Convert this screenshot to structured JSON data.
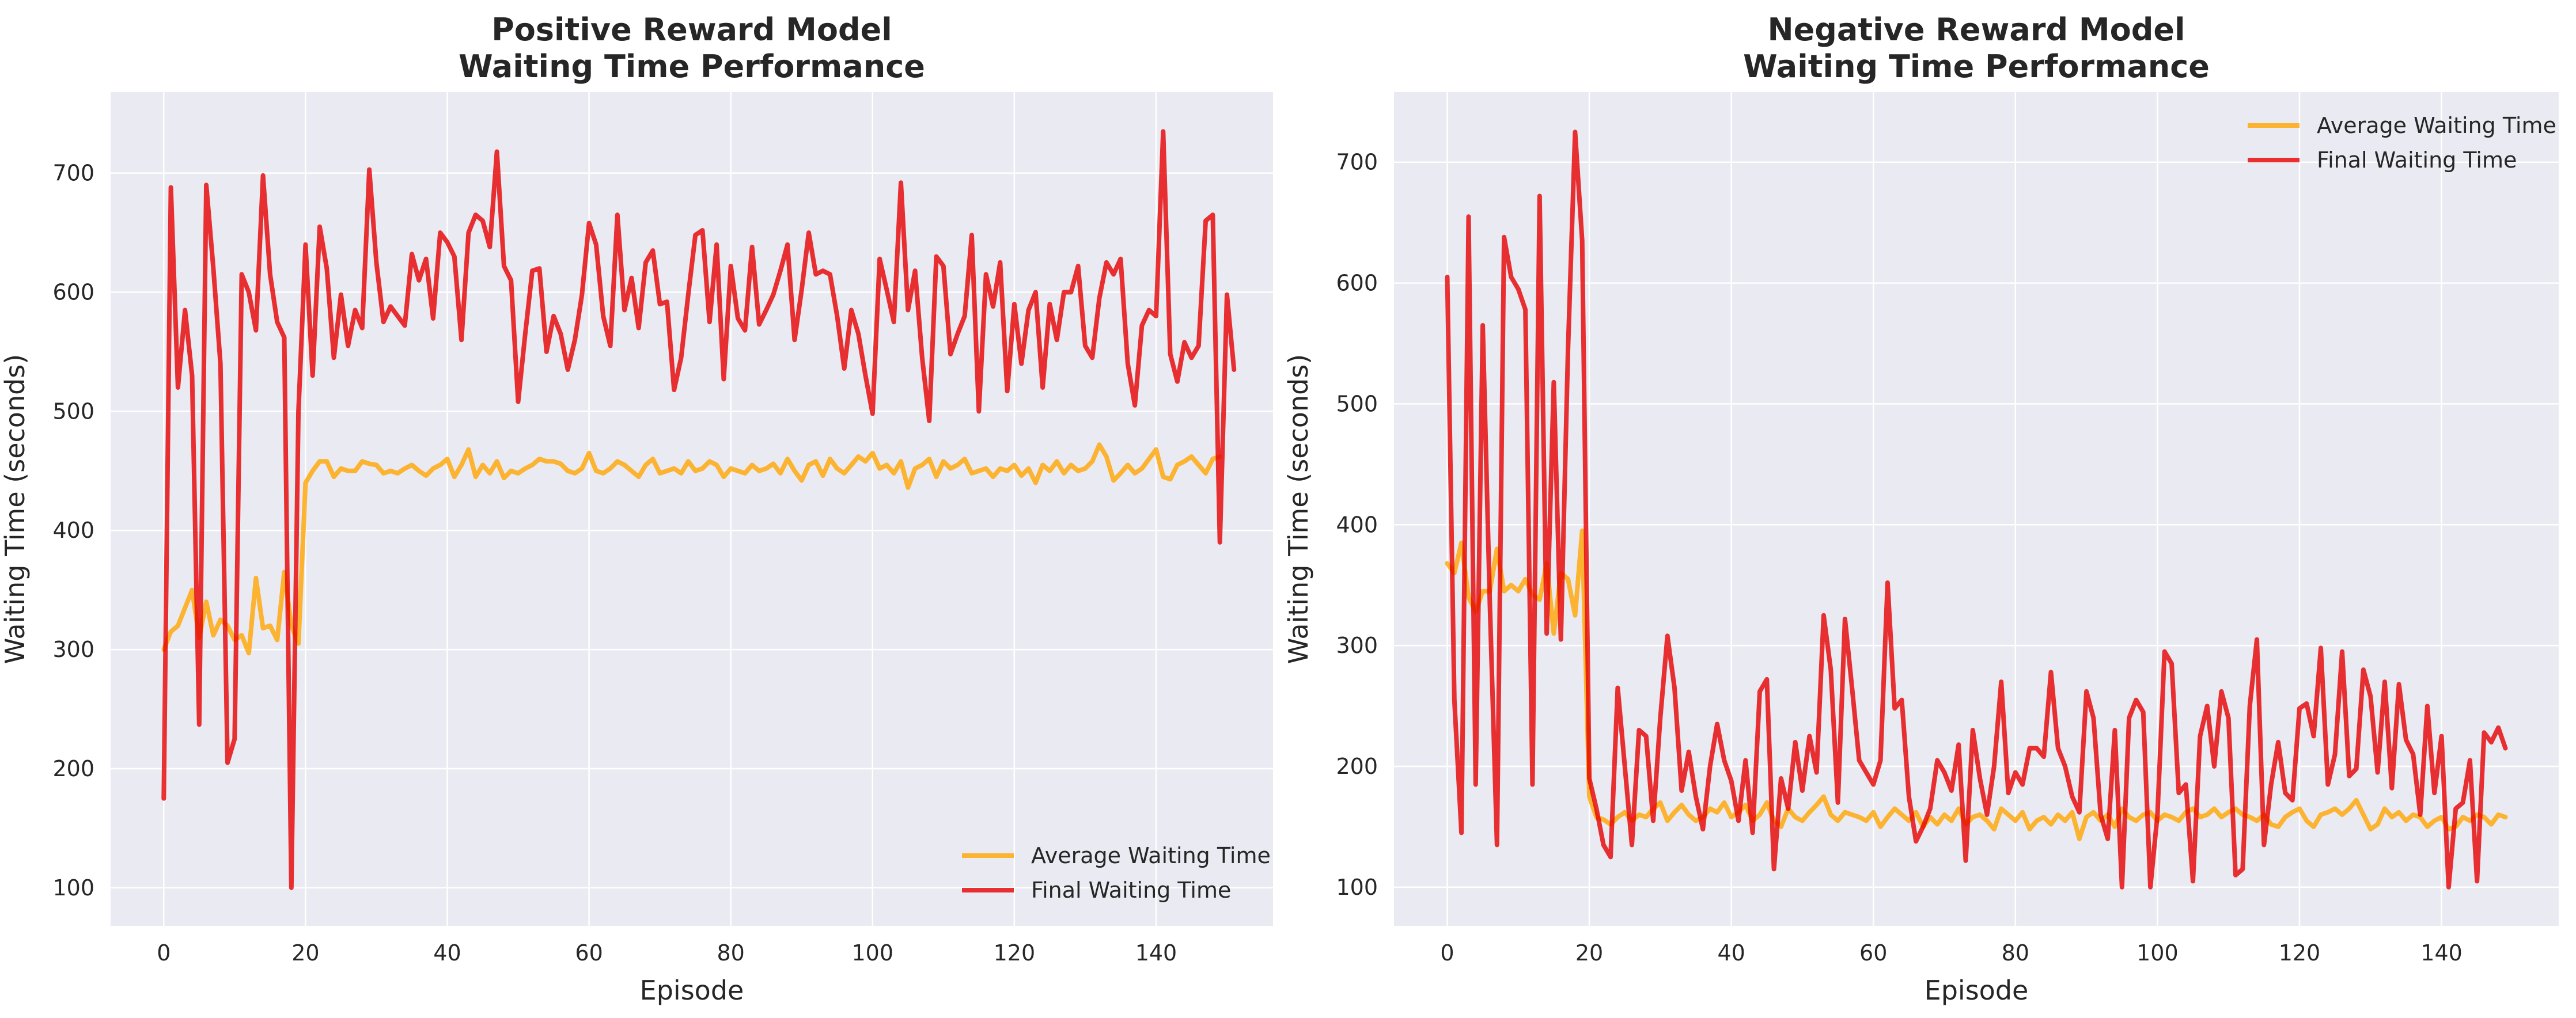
{
  "chart_data": [
    {
      "type": "line",
      "title": [
        "Positive Reward Model",
        "Waiting Time Performance"
      ],
      "xlabel": "Episode",
      "ylabel": "Waiting Time (seconds)",
      "xlim": [
        -7.5,
        156.5
      ],
      "ylim": [
        68,
        768
      ],
      "xticks": [
        0,
        20,
        40,
        60,
        80,
        100,
        120,
        140
      ],
      "yticks": [
        100,
        200,
        300,
        400,
        500,
        600,
        700
      ],
      "grid": true,
      "legend_position": "lower-right",
      "series": [
        {
          "name": "Average Waiting Time",
          "color": "#ffa500",
          "values": [
            300,
            315,
            320,
            335,
            350,
            310,
            340,
            312,
            325,
            320,
            308,
            312,
            297,
            360,
            318,
            320,
            308,
            365,
            320,
            305,
            440,
            450,
            458,
            458,
            445,
            452,
            450,
            450,
            458,
            456,
            455,
            448,
            450,
            448,
            452,
            455,
            450,
            446,
            452,
            455,
            460,
            445,
            455,
            468,
            445,
            455,
            448,
            458,
            444,
            450,
            448,
            452,
            455,
            460,
            458,
            458,
            456,
            450,
            448,
            452,
            465,
            450,
            448,
            452,
            458,
            455,
            450,
            445,
            455,
            460,
            448,
            450,
            452,
            448,
            458,
            450,
            452,
            458,
            455,
            445,
            452,
            450,
            448,
            455,
            450,
            452,
            456,
            448,
            460,
            450,
            442,
            455,
            458,
            446,
            460,
            452,
            448,
            455,
            462,
            458,
            465,
            452,
            455,
            448,
            458,
            436,
            452,
            455,
            460,
            445,
            458,
            452,
            455,
            460,
            448,
            450,
            452,
            445,
            452,
            450,
            455,
            446,
            452,
            440,
            455,
            450,
            458,
            448,
            455,
            450,
            452,
            458,
            472,
            462,
            442,
            448,
            455,
            448,
            452,
            460,
            468,
            445,
            443,
            455,
            458,
            462,
            455,
            448,
            460,
            462
          ]
        },
        {
          "name": "Final Waiting Time",
          "color": "#e60000",
          "values": [
            175,
            688,
            520,
            585,
            530,
            237,
            690,
            620,
            540,
            205,
            225,
            615,
            600,
            568,
            698,
            615,
            575,
            562,
            100,
            500,
            640,
            530,
            655,
            620,
            545,
            598,
            555,
            585,
            570,
            703,
            625,
            575,
            588,
            580,
            572,
            632,
            610,
            628,
            578,
            650,
            642,
            630,
            560,
            650,
            665,
            660,
            638,
            718,
            622,
            610,
            508,
            565,
            618,
            620,
            550,
            580,
            565,
            535,
            560,
            598,
            658,
            640,
            580,
            555,
            665,
            585,
            612,
            570,
            625,
            635,
            590,
            592,
            518,
            545,
            598,
            648,
            652,
            575,
            640,
            527,
            622,
            578,
            568,
            638,
            573,
            585,
            598,
            618,
            640,
            560,
            602,
            650,
            615,
            618,
            615,
            580,
            536,
            585,
            565,
            530,
            498,
            628,
            602,
            575,
            692,
            585,
            618,
            545,
            492,
            630,
            622,
            548,
            565,
            580,
            648,
            500,
            615,
            588,
            625,
            517,
            590,
            540,
            585,
            600,
            520,
            590,
            560,
            600,
            600,
            622,
            555,
            545,
            595,
            625,
            615,
            628,
            540,
            505,
            572,
            585,
            580,
            735,
            548,
            525,
            558,
            545,
            555,
            660,
            665,
            390,
            598,
            535
          ]
        }
      ]
    },
    {
      "type": "line",
      "title": [
        "Negative Reward Model",
        "Waiting Time Performance"
      ],
      "xlabel": "Episode",
      "ylabel": "Waiting Time (seconds)",
      "xlim": [
        -7.5,
        156.5
      ],
      "ylim": [
        68,
        758
      ],
      "xticks": [
        0,
        20,
        40,
        60,
        80,
        100,
        120,
        140
      ],
      "yticks": [
        100,
        200,
        300,
        400,
        500,
        600,
        700
      ],
      "grid": true,
      "legend_position": "top-right",
      "series": [
        {
          "name": "Average Waiting Time",
          "color": "#ffa500",
          "values": [
            368,
            360,
            385,
            340,
            328,
            345,
            345,
            380,
            345,
            350,
            345,
            355,
            342,
            338,
            368,
            310,
            360,
            355,
            325,
            395,
            175,
            158,
            156,
            152,
            158,
            162,
            155,
            160,
            158,
            165,
            170,
            155,
            162,
            168,
            160,
            155,
            158,
            165,
            162,
            170,
            158,
            162,
            168,
            155,
            160,
            170,
            155,
            150,
            165,
            158,
            155,
            162,
            168,
            175,
            160,
            155,
            162,
            160,
            158,
            155,
            162,
            150,
            158,
            165,
            160,
            155,
            162,
            150,
            158,
            152,
            160,
            155,
            165,
            152,
            158,
            160,
            155,
            148,
            165,
            160,
            155,
            162,
            148,
            155,
            158,
            152,
            160,
            155,
            162,
            140,
            158,
            162,
            155,
            160,
            150,
            165,
            158,
            155,
            160,
            162,
            155,
            160,
            158,
            155,
            162,
            165,
            158,
            160,
            165,
            158,
            162,
            165,
            160,
            158,
            155,
            160,
            152,
            150,
            158,
            162,
            165,
            155,
            150,
            160,
            162,
            165,
            160,
            165,
            172,
            160,
            148,
            152,
            165,
            158,
            162,
            155,
            160,
            158,
            150,
            155,
            158,
            148,
            150,
            158,
            155,
            160,
            158,
            152,
            160,
            158
          ]
        },
        {
          "name": "Final Waiting Time",
          "color": "#e60000",
          "values": [
            605,
            255,
            145,
            655,
            185,
            565,
            335,
            135,
            638,
            605,
            595,
            578,
            185,
            672,
            310,
            518,
            305,
            545,
            725,
            635,
            190,
            165,
            135,
            125,
            265,
            200,
            135,
            230,
            225,
            155,
            240,
            308,
            265,
            180,
            212,
            175,
            148,
            200,
            235,
            205,
            188,
            155,
            205,
            145,
            262,
            272,
            115,
            190,
            165,
            220,
            180,
            225,
            195,
            325,
            280,
            170,
            322,
            265,
            205,
            195,
            185,
            205,
            352,
            248,
            255,
            175,
            138,
            150,
            165,
            205,
            195,
            180,
            218,
            122,
            230,
            190,
            160,
            200,
            270,
            178,
            195,
            185,
            215,
            215,
            208,
            278,
            215,
            200,
            175,
            162,
            262,
            240,
            160,
            140,
            230,
            100,
            240,
            255,
            245,
            100,
            160,
            295,
            285,
            178,
            185,
            105,
            225,
            250,
            200,
            262,
            240,
            110,
            115,
            250,
            305,
            135,
            185,
            220,
            178,
            172,
            248,
            252,
            225,
            298,
            185,
            210,
            295,
            192,
            198,
            280,
            258,
            195,
            270,
            182,
            268,
            222,
            210,
            160,
            250,
            178,
            225,
            100,
            165,
            170,
            205,
            105,
            228,
            220,
            232,
            215
          ]
        }
      ]
    }
  ]
}
